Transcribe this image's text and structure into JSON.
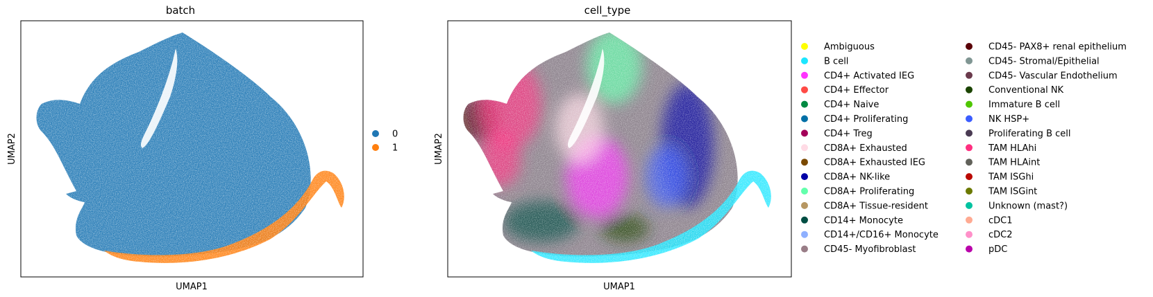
{
  "chart_data": [
    {
      "type": "scatter",
      "title": "batch",
      "xlabel": "UMAP1",
      "ylabel": "UMAP2",
      "xticks": [],
      "yticks": [],
      "legend_position": "right",
      "legend_title": "",
      "series": [
        {
          "name": "0",
          "color": "#1f77b4"
        },
        {
          "name": "1",
          "color": "#ff7f0e"
        }
      ]
    },
    {
      "type": "scatter",
      "title": "cell_type",
      "xlabel": "UMAP1",
      "ylabel": "UMAP2",
      "xticks": [],
      "yticks": [],
      "legend_position": "right",
      "legend_title": "",
      "series": [
        {
          "name": "Ambiguous",
          "color": "#ffff00"
        },
        {
          "name": "B cell",
          "color": "#1ce6ff"
        },
        {
          "name": "CD4+ Activated IEG",
          "color": "#ff34ff"
        },
        {
          "name": "CD4+ Effector",
          "color": "#ff4a46"
        },
        {
          "name": "CD4+ Naive",
          "color": "#008941"
        },
        {
          "name": "CD4+ Proliferating",
          "color": "#006fa6"
        },
        {
          "name": "CD4+ Treg",
          "color": "#a30059"
        },
        {
          "name": "CD8A+ Exhausted",
          "color": "#ffdbe5"
        },
        {
          "name": "CD8A+ Exhausted IEG",
          "color": "#7a4900"
        },
        {
          "name": "CD8A+ NK-like",
          "color": "#0000a6"
        },
        {
          "name": "CD8A+ Proliferating",
          "color": "#63ffac"
        },
        {
          "name": "CD8A+ Tissue-resident",
          "color": "#b79762"
        },
        {
          "name": "CD14+ Monocyte",
          "color": "#004d43"
        },
        {
          "name": "CD14+/CD16+ Monocyte",
          "color": "#8fb0ff"
        },
        {
          "name": "CD45- Myofibroblast",
          "color": "#997d87"
        },
        {
          "name": "CD45- PAX8+ renal epithelium",
          "color": "#5a0007"
        },
        {
          "name": "CD45- Stromal/Epithelial",
          "color": "#809693"
        },
        {
          "name": "CD45- Vascular Endothelium",
          "color": "#6a3a4c"
        },
        {
          "name": "Conventional NK",
          "color": "#1b4400"
        },
        {
          "name": "Immature B cell",
          "color": "#4fc601"
        },
        {
          "name": "NK HSP+",
          "color": "#3b5dff"
        },
        {
          "name": "Proliferating B cell",
          "color": "#4a3b53"
        },
        {
          "name": "TAM HLAhi",
          "color": "#ff2f80"
        },
        {
          "name": "TAM HLAint",
          "color": "#61615a"
        },
        {
          "name": "TAM ISGhi",
          "color": "#ba0900"
        },
        {
          "name": "TAM ISGint",
          "color": "#6b7900"
        },
        {
          "name": "Unknown (mast?)",
          "color": "#00c2a0"
        },
        {
          "name": "cDC1",
          "color": "#ffaa92"
        },
        {
          "name": "cDC2",
          "color": "#ff90c9"
        },
        {
          "name": "pDC",
          "color": "#b903aa"
        }
      ]
    }
  ]
}
